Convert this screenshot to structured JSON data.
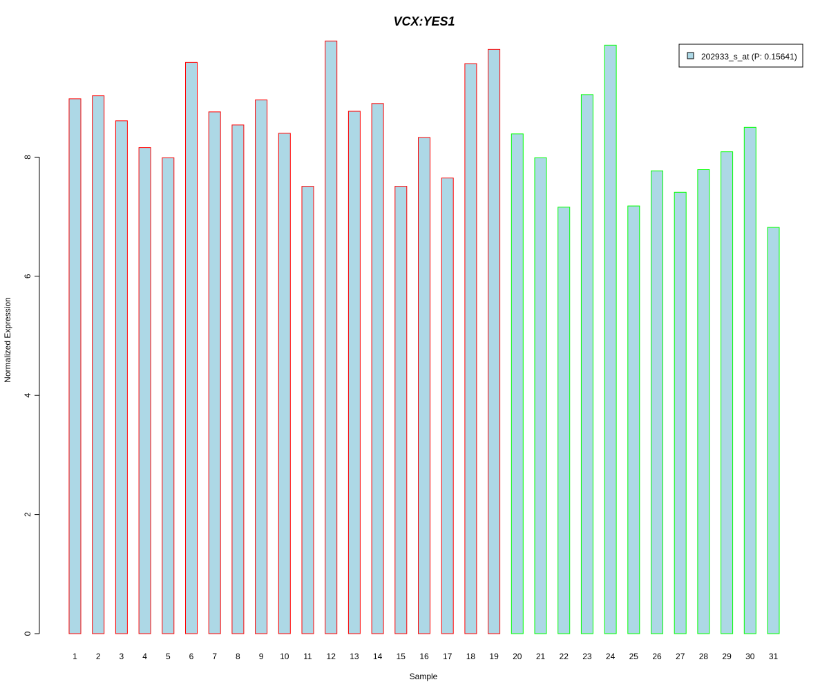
{
  "chart_data": {
    "type": "bar",
    "title": "VCX:YES1",
    "title_color": "#0000ff",
    "xlabel": "Sample",
    "ylabel": "Normalized Expression",
    "ylim": [
      0,
      10
    ],
    "yticks": [
      0,
      2,
      4,
      6,
      8
    ],
    "grid": false,
    "bar_fill": "#add8e6",
    "categories": [
      "1",
      "2",
      "3",
      "4",
      "5",
      "6",
      "7",
      "8",
      "9",
      "10",
      "11",
      "12",
      "13",
      "14",
      "15",
      "16",
      "17",
      "18",
      "19",
      "20",
      "21",
      "22",
      "23",
      "24",
      "25",
      "26",
      "27",
      "28",
      "29",
      "30",
      "31"
    ],
    "series": [
      {
        "name": "202933_s_at (P: 0.15641)",
        "values": [
          8.98,
          9.03,
          8.61,
          8.16,
          7.99,
          9.59,
          8.76,
          8.54,
          8.96,
          8.4,
          7.51,
          9.95,
          8.77,
          8.9,
          7.51,
          8.33,
          7.65,
          9.57,
          9.81,
          8.39,
          7.99,
          7.16,
          9.05,
          9.88,
          7.18,
          7.77,
          7.41,
          7.79,
          8.09,
          8.5,
          6.82
        ]
      }
    ],
    "groups": [
      {
        "from": 1,
        "to": 19,
        "border_color": "#ff0000"
      },
      {
        "from": 20,
        "to": 31,
        "border_color": "#00ff00"
      }
    ],
    "legend": {
      "placement": "top-right",
      "entries": [
        "202933_s_at (P: 0.15641)"
      ]
    }
  }
}
